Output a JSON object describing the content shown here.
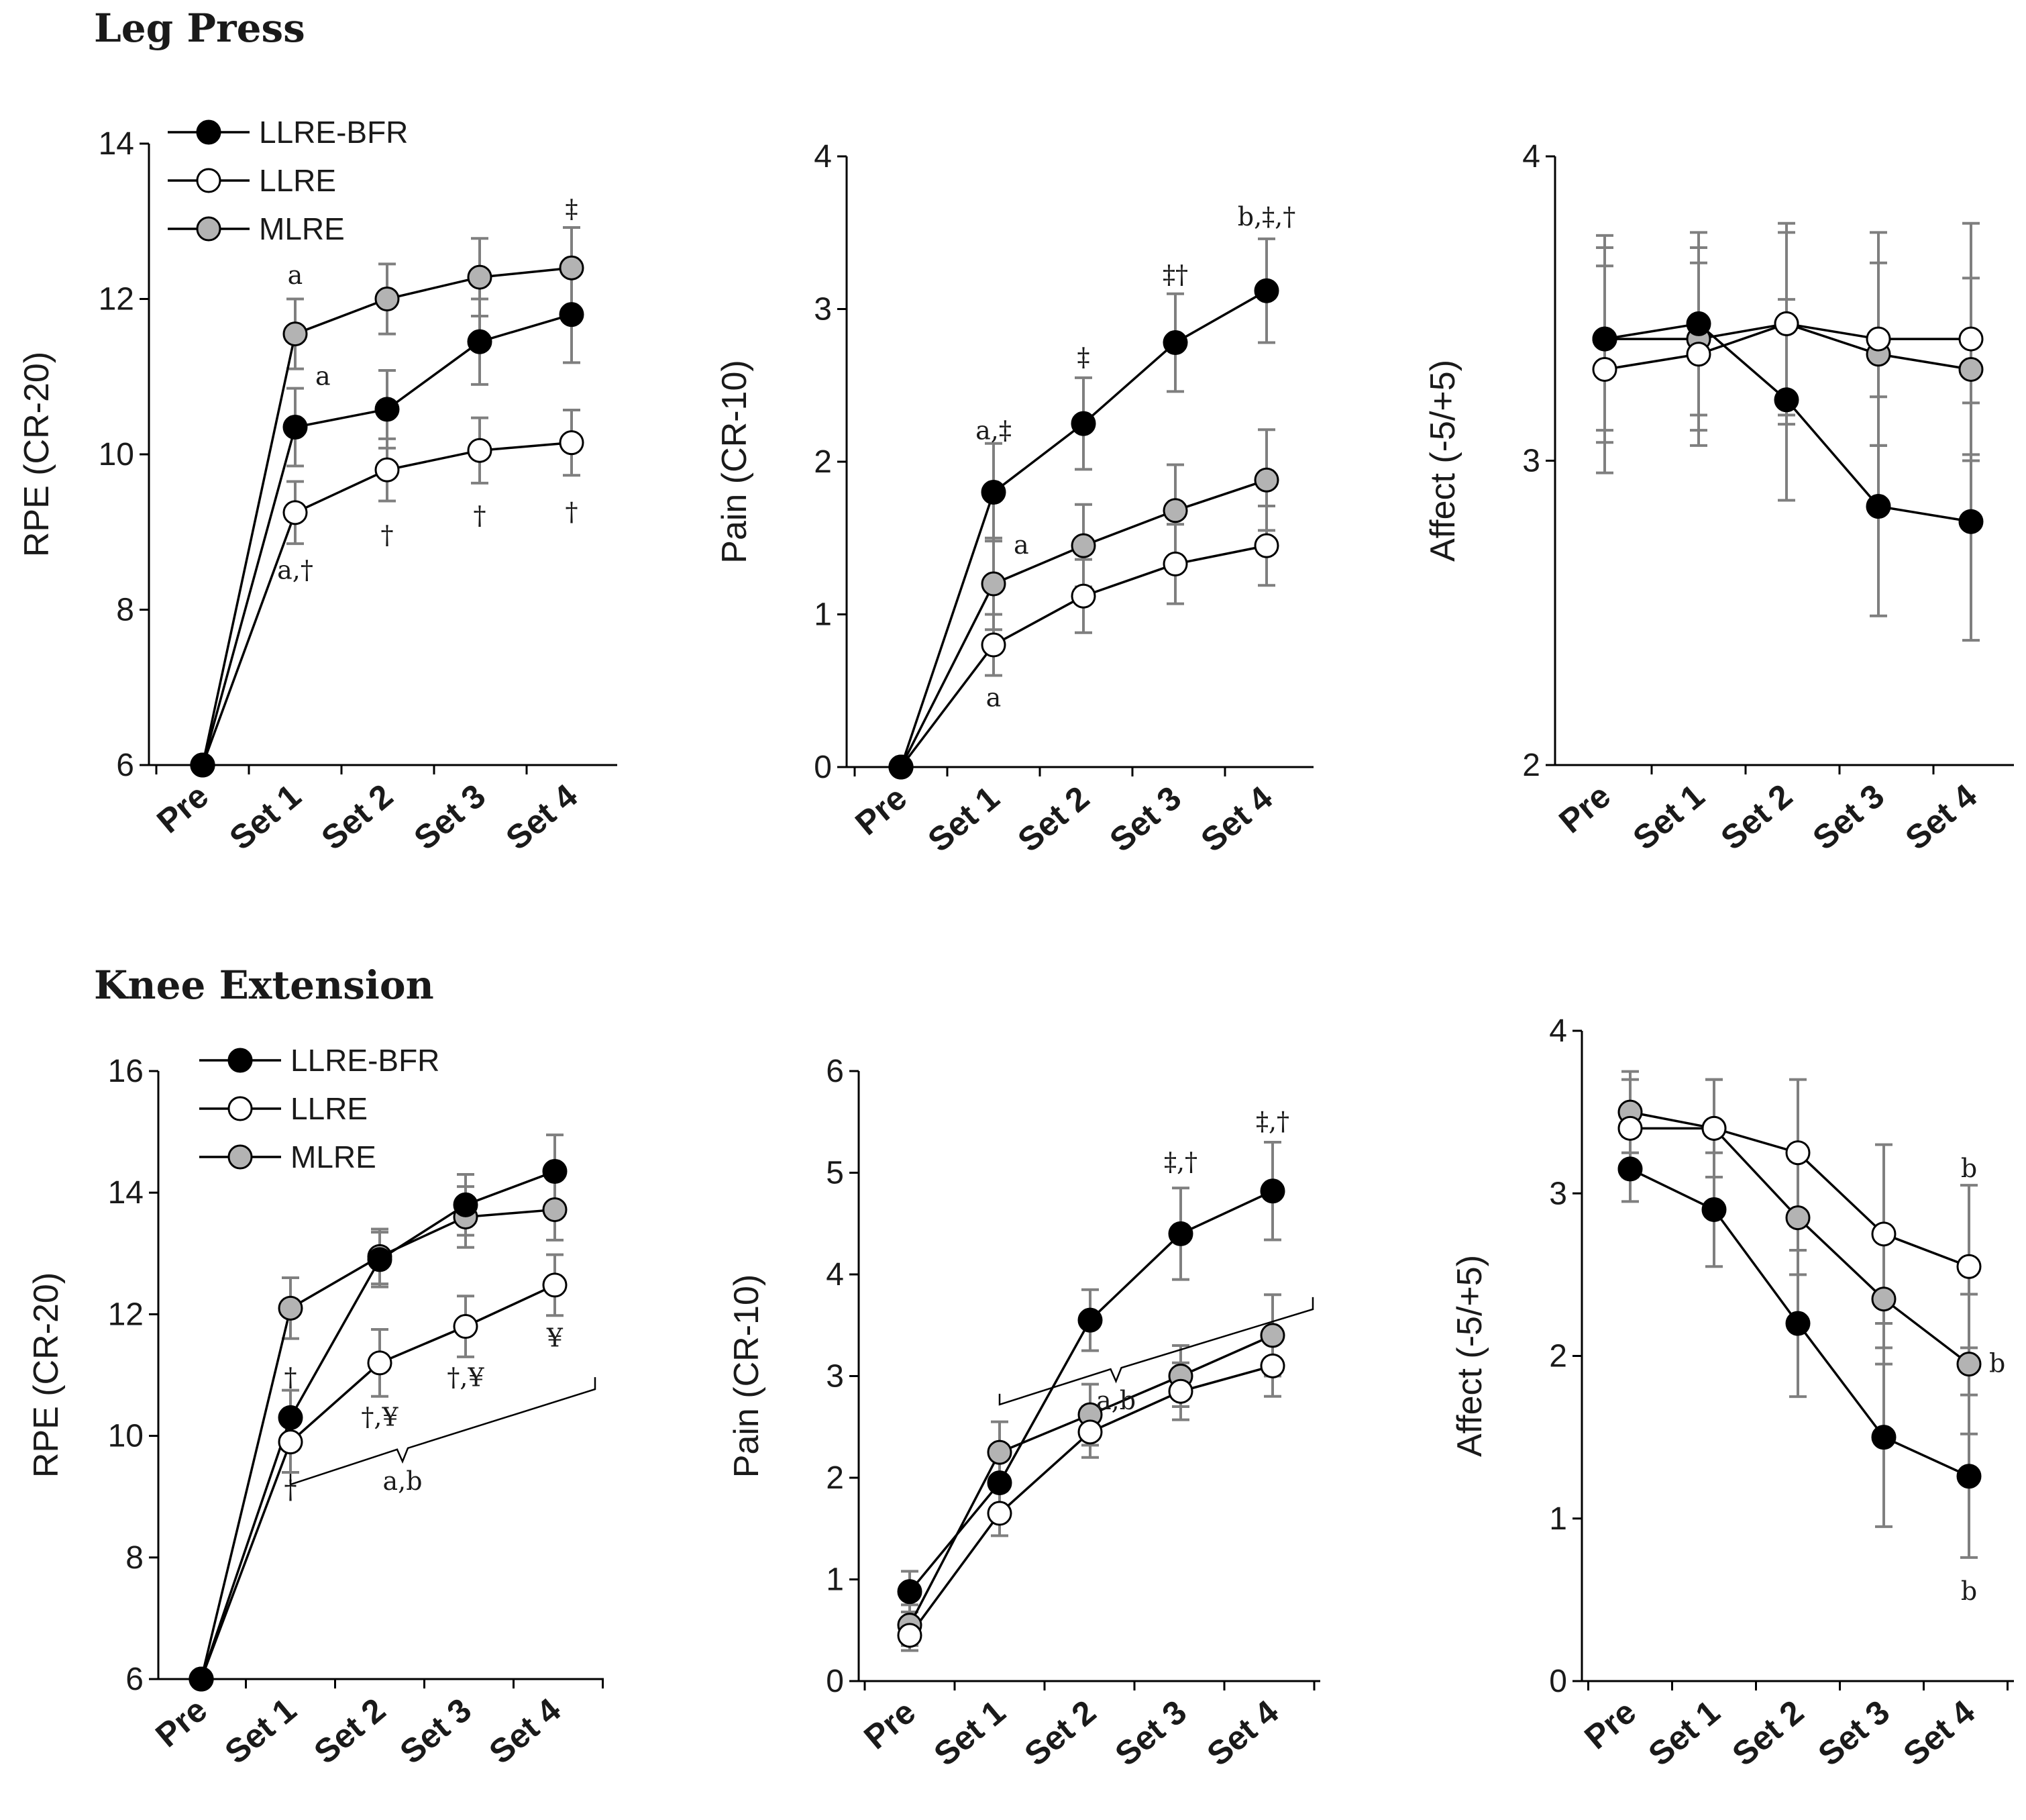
{
  "titles": {
    "leg_press": "Leg Press",
    "knee_extension": "Knee Extension"
  },
  "categories": [
    "Pre",
    "Set 1",
    "Set 2",
    "Set 3",
    "Set 4"
  ],
  "legend": [
    "LLRE-BFR",
    "LLRE",
    "MLRE"
  ],
  "series_colors": {
    "LLRE-BFR": "#000000",
    "LLRE": "#ffffff",
    "MLRE": "#b3b3b3"
  },
  "chart_data": [
    {
      "id": "lp-rpe",
      "type": "line",
      "section": "Leg Press",
      "ylabel": "RPE (CR-20)",
      "ylim": [
        6,
        14
      ],
      "yticks": [
        6,
        8,
        10,
        12,
        14
      ],
      "categories": [
        "Pre",
        "Set 1",
        "Set 2",
        "Set 3",
        "Set 4"
      ],
      "legend": true,
      "series": [
        {
          "name": "LLRE-BFR",
          "values": [
            6,
            10.35,
            10.58,
            11.45,
            11.8
          ],
          "errors": [
            0,
            0.5,
            0.5,
            0.55,
            0.62
          ]
        },
        {
          "name": "LLRE",
          "values": [
            6,
            9.25,
            9.8,
            10.05,
            10.15
          ],
          "errors": [
            0,
            0.4,
            0.4,
            0.42,
            0.42
          ]
        },
        {
          "name": "MLRE",
          "values": [
            6,
            11.55,
            12.0,
            12.28,
            12.4
          ],
          "errors": [
            0,
            0.45,
            0.45,
            0.5,
            0.52
          ]
        }
      ],
      "annotations": [
        {
          "text": "a",
          "x": "Set 1",
          "y": 12.3
        },
        {
          "text": "a",
          "x": "Set 1",
          "y": 11.0,
          "offset": "right"
        },
        {
          "text": "a,†",
          "x": "Set 1",
          "y": 8.5
        },
        {
          "text": "†",
          "x": "Set 2",
          "y": 8.95
        },
        {
          "text": "†",
          "x": "Set 3",
          "y": 9.2
        },
        {
          "text": "†",
          "x": "Set 4",
          "y": 9.25
        },
        {
          "text": "‡",
          "x": "Set 4",
          "y": 13.15
        }
      ]
    },
    {
      "id": "lp-pain",
      "type": "line",
      "section": "Leg Press",
      "ylabel": "Pain (CR-10)",
      "ylim": [
        0,
        4
      ],
      "yticks": [
        0,
        1,
        2,
        3,
        4
      ],
      "categories": [
        "Pre",
        "Set 1",
        "Set 2",
        "Set 3",
        "Set 4"
      ],
      "legend": false,
      "series": [
        {
          "name": "LLRE-BFR",
          "values": [
            0,
            1.8,
            2.25,
            2.78,
            3.12
          ],
          "errors": [
            0,
            0.32,
            0.3,
            0.32,
            0.34
          ]
        },
        {
          "name": "LLRE",
          "values": [
            0,
            0.8,
            1.12,
            1.33,
            1.45
          ],
          "errors": [
            0,
            0.2,
            0.24,
            0.26,
            0.26
          ]
        },
        {
          "name": "MLRE",
          "values": [
            0,
            1.2,
            1.45,
            1.68,
            1.88
          ],
          "errors": [
            0,
            0.3,
            0.27,
            0.3,
            0.33
          ]
        }
      ],
      "annotations": [
        {
          "text": "a,‡",
          "x": "Set 1",
          "y": 2.2
        },
        {
          "text": "a",
          "x": "Set 1",
          "y": 1.45,
          "offset": "right"
        },
        {
          "text": "a",
          "x": "Set 1",
          "y": 0.45
        },
        {
          "text": "‡",
          "x": "Set 2",
          "y": 2.68
        },
        {
          "text": "‡†",
          "x": "Set 3",
          "y": 3.22
        },
        {
          "text": "b,‡,†",
          "x": "Set 4",
          "y": 3.6
        }
      ]
    },
    {
      "id": "lp-affect",
      "type": "line",
      "section": "Leg Press",
      "ylabel": "Affect (-5/+5)",
      "ylim": [
        2,
        4
      ],
      "yticks": [
        2,
        3,
        4
      ],
      "categories": [
        "Pre",
        "Set 1",
        "Set 2",
        "Set 3",
        "Set 4"
      ],
      "legend": false,
      "series": [
        {
          "name": "LLRE-BFR",
          "values": [
            3.4,
            3.45,
            3.2,
            2.85,
            2.8
          ],
          "errors": [
            0.34,
            0.3,
            0.33,
            0.36,
            0.39
          ]
        },
        {
          "name": "LLRE",
          "values": [
            3.3,
            3.35,
            3.45,
            3.4,
            3.4
          ],
          "errors": [
            0.34,
            0.3,
            0.33,
            0.35,
            0.38
          ]
        },
        {
          "name": "MLRE",
          "values": [
            3.4,
            3.4,
            3.45,
            3.35,
            3.3
          ],
          "errors": [
            0.3,
            0.3,
            0.3,
            0.3,
            0.3
          ]
        }
      ],
      "annotations": []
    },
    {
      "id": "ke-rpe",
      "type": "line",
      "section": "Knee Extension",
      "ylabel": "RPE (CR-20)",
      "ylim": [
        6,
        16
      ],
      "yticks": [
        6,
        8,
        10,
        12,
        14,
        16
      ],
      "categories": [
        "Pre",
        "Set 1",
        "Set 2",
        "Set 3",
        "Set 4"
      ],
      "legend": true,
      "series": [
        {
          "name": "LLRE-BFR",
          "values": [
            6,
            10.3,
            12.9,
            13.8,
            14.35
          ],
          "errors": [
            0,
            0.45,
            0.45,
            0.5,
            0.6
          ]
        },
        {
          "name": "LLRE",
          "values": [
            6,
            9.9,
            11.2,
            11.8,
            12.48
          ],
          "errors": [
            0,
            0.5,
            0.55,
            0.5,
            0.5
          ]
        },
        {
          "name": "MLRE",
          "values": [
            6,
            12.1,
            12.95,
            13.6,
            13.72
          ],
          "errors": [
            0,
            0.5,
            0.45,
            0.5,
            0.5
          ]
        }
      ],
      "annotations": [
        {
          "text": "†",
          "x": "Set 1",
          "y": 10.95
        },
        {
          "text": "†",
          "x": "Set 1",
          "y": 9.1
        },
        {
          "text": "†,¥",
          "x": "Set 2",
          "y": 10.3
        },
        {
          "text": "†,¥",
          "x": "Set 3",
          "y": 10.95
        },
        {
          "text": "¥",
          "x": "Set 4",
          "y": 11.6
        },
        {
          "text": "a,b",
          "bracket": [
            "Set 1",
            "Set 4"
          ],
          "y": 9.2
        }
      ]
    },
    {
      "id": "ke-pain",
      "type": "line",
      "section": "Knee Extension",
      "ylabel": "Pain (CR-10)",
      "ylim": [
        0,
        6
      ],
      "yticks": [
        0,
        1,
        2,
        3,
        4,
        5,
        6
      ],
      "categories": [
        "Pre",
        "Set 1",
        "Set 2",
        "Set 3",
        "Set 4"
      ],
      "legend": false,
      "series": [
        {
          "name": "LLRE-BFR",
          "values": [
            0.88,
            1.95,
            3.55,
            4.4,
            4.82
          ],
          "errors": [
            0.2,
            0.3,
            0.3,
            0.45,
            0.48
          ]
        },
        {
          "name": "LLRE",
          "values": [
            0.45,
            1.65,
            2.45,
            2.85,
            3.1
          ],
          "errors": [
            0.15,
            0.22,
            0.25,
            0.28,
            0.3
          ]
        },
        {
          "name": "MLRE",
          "values": [
            0.55,
            2.25,
            2.62,
            3.0,
            3.4
          ],
          "errors": [
            0.2,
            0.3,
            0.3,
            0.3,
            0.4
          ]
        }
      ],
      "annotations": [
        {
          "text": "‡,†",
          "x": "Set 3",
          "y": 5.1
        },
        {
          "text": "‡,†",
          "x": "Set 4",
          "y": 5.5
        },
        {
          "text": "a,b",
          "bracket": [
            "Set 1",
            "Set 4"
          ],
          "y": 2.72
        }
      ]
    },
    {
      "id": "ke-affect",
      "type": "line",
      "section": "Knee Extension",
      "ylabel": "Affect (-5/+5)",
      "ylim": [
        0,
        4
      ],
      "yticks": [
        0,
        1,
        2,
        3,
        4
      ],
      "categories": [
        "Pre",
        "Set 1",
        "Set 2",
        "Set 3",
        "Set 4"
      ],
      "legend": false,
      "series": [
        {
          "name": "LLRE-BFR",
          "values": [
            3.15,
            2.9,
            2.2,
            1.5,
            1.26
          ],
          "errors": [
            0.2,
            0.35,
            0.45,
            0.55,
            0.5
          ]
        },
        {
          "name": "LLRE",
          "values": [
            3.4,
            3.4,
            3.25,
            2.75,
            2.55
          ],
          "errors": [
            0.3,
            0.3,
            0.45,
            0.55,
            0.5
          ]
        },
        {
          "name": "MLRE",
          "values": [
            3.5,
            3.4,
            2.85,
            2.35,
            1.95
          ],
          "errors": [
            0.25,
            0.3,
            0.35,
            0.4,
            0.43
          ]
        }
      ],
      "annotations": [
        {
          "text": "b",
          "x": "Set 4",
          "y": 3.15
        },
        {
          "text": "b",
          "x": "Set 4",
          "y": 1.95,
          "offset": "right"
        },
        {
          "text": "b",
          "x": "Set 4",
          "y": 0.55
        }
      ]
    }
  ]
}
